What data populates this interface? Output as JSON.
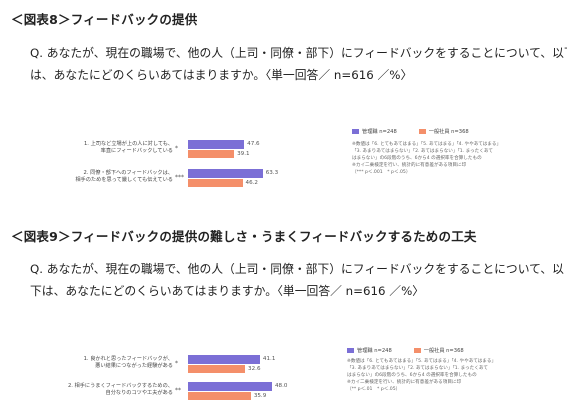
{
  "colors": {
    "manager": "#7b6fd6",
    "staff": "#f48f6a"
  },
  "fig8": {
    "heading": "＜図表8＞フィードバックの提供",
    "question_line1": "Q. あなたが、現在の職場で、他の人（上司・同僚・部下）にフィードバックをすることについて、以下",
    "question_line2": "は、あなたにどのくらいあてはまりますか。〈単一回答／ n=616 ／%〉",
    "legend": {
      "manager": "管理職 n=248",
      "staff": "一般社員 n=368"
    },
    "notes": [
      "※数値は「6. とてもあてはまる」「5. あてはまる」「4. ややあてはまる」",
      "「3. あまりあてはまらない」「2. あてはまらない」「1. まったくあて",
      "はまらない」の6段階のうち、6から4 の選択率を合算したもの",
      "※カイ二乗検定を行い、統計的に有意差がある項目に印",
      "（*** p＜.001　* p＜.05）"
    ],
    "chart_data": {
      "type": "bar",
      "orientation": "horizontal",
      "categories": [
        "1. 上司など立場が上の人に対しても、率直にフィードバックしている",
        "2. 同僚・部下へのフィードバックは、相手のためを思って厳しくても伝えている"
      ],
      "category_lines": [
        [
          "1. 上司など立場が上の人に対しても、",
          "率直にフィードバックしている"
        ],
        [
          "2. 同僚・部下へのフィードバックは、",
          "相手のためを思って厳しくても伝えている"
        ]
      ],
      "significance": [
        "*",
        "***"
      ],
      "series": [
        {
          "name": "管理職 n=248",
          "values": [
            47.6,
            63.3
          ]
        },
        {
          "name": "一般社員 n=368",
          "values": [
            39.1,
            46.2
          ]
        }
      ],
      "xlim": [
        0,
        100
      ]
    }
  },
  "fig9": {
    "heading": "＜図表9＞フィードバックの提供の難しさ・うまくフィードバックするための工夫",
    "question_line1": "Q. あなたが、現在の職場で、他の人（上司・同僚・部下）にフィードバックをすることについて、以",
    "question_line2": "下は、あなたにどのくらいあてはまりますか。〈単一回答／ n=616 ／%〉",
    "legend": {
      "manager": "管理職 n=248",
      "staff": "一般社員 n=368"
    },
    "notes": [
      "※数値は「6. とてもあてはまる」「5. あてはまる」「4. ややあてはまる」",
      "「3. あまりあてはまらない」「2. あてはまらない」「1. まったくあて",
      "はまらない」の6段階のうち、6から4 の選択率を合算したもの",
      "※カイ二乗検定を行い、統計的に有意差がある項目に印",
      "（** p＜.01　* p＜.05）"
    ],
    "chart_data": {
      "type": "bar",
      "orientation": "horizontal",
      "categories": [
        "1. 良かれと思ったフィードバックが、悪い結果につながった経験がある",
        "2. 相手にうまくフィードバックするための、自分なりのコツや工夫がある"
      ],
      "category_lines": [
        [
          "1. 良かれと思ったフィードバックが、",
          "悪い結果につながった経験がある"
        ],
        [
          "2. 相手にうまくフィードバックするための、",
          "自分なりのコツや工夫がある"
        ]
      ],
      "significance": [
        "*",
        "**"
      ],
      "series": [
        {
          "name": "管理職 n=248",
          "values": [
            41.1,
            48.0
          ]
        },
        {
          "name": "一般社員 n=368",
          "values": [
            32.6,
            35.9
          ]
        }
      ],
      "xlim": [
        0,
        100
      ]
    }
  }
}
